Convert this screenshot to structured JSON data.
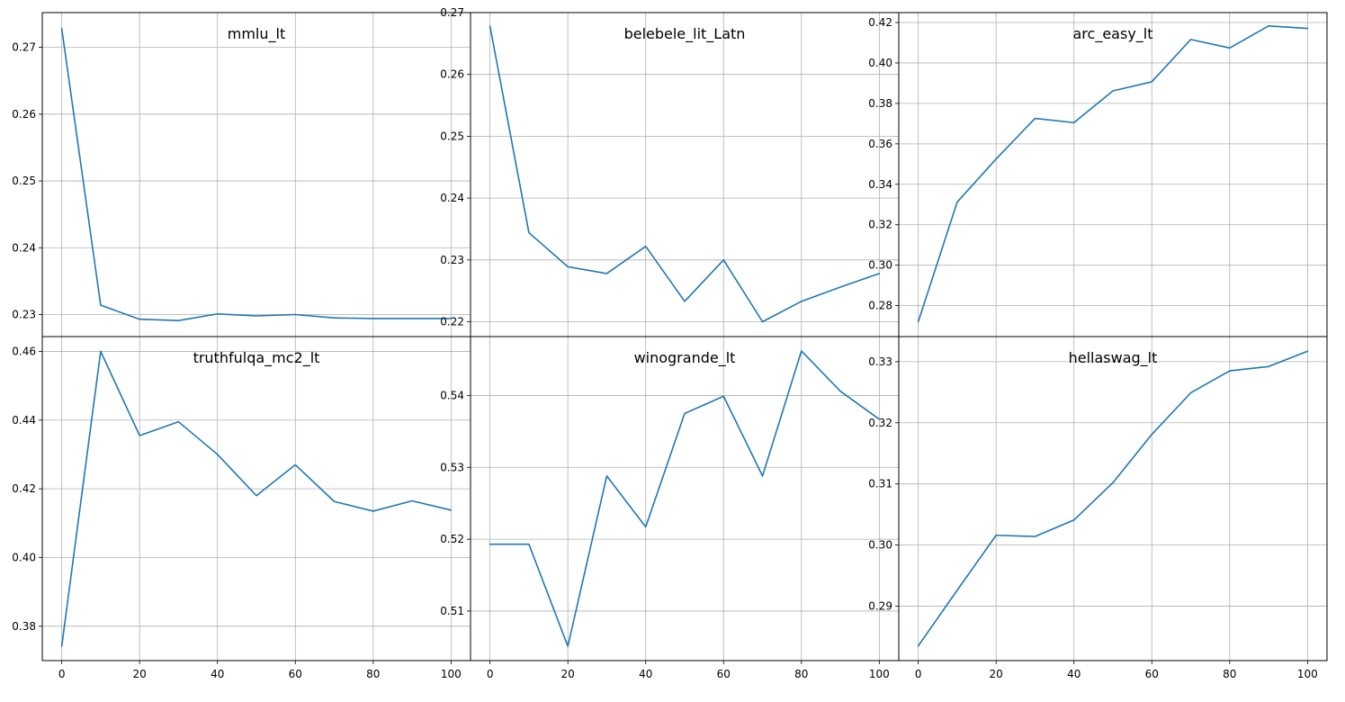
{
  "chart_data": [
    {
      "type": "line",
      "title": "mmlu_lt",
      "x": [
        0,
        10,
        20,
        30,
        40,
        50,
        60,
        70,
        80,
        90,
        100
      ],
      "values": [
        0.2728,
        0.2314,
        0.2293,
        0.2291,
        0.2301,
        0.2298,
        0.23,
        0.2295,
        0.2294,
        0.2294,
        0.2294
      ],
      "xlim": [
        -5,
        105
      ],
      "ylim": [
        0.2267,
        0.2752
      ],
      "xticks": [
        0,
        20,
        40,
        60,
        80,
        100
      ],
      "xtick_labels": [
        "0",
        "20",
        "40",
        "60",
        "80",
        "100"
      ],
      "yticks": [
        0.23,
        0.24,
        0.25,
        0.26,
        0.27
      ],
      "ytick_labels": [
        "0.23",
        "0.24",
        "0.25",
        "0.26",
        "0.27"
      ],
      "grid": true
    },
    {
      "type": "line",
      "title": "belebele_lit_Latn",
      "x": [
        0,
        10,
        20,
        30,
        40,
        50,
        60,
        70,
        80,
        90,
        100
      ],
      "values": [
        0.2678,
        0.2344,
        0.2289,
        0.2278,
        0.2322,
        0.2233,
        0.23,
        0.22,
        0.2233,
        0.2256,
        0.2278
      ],
      "xlim": [
        -5,
        105
      ],
      "ylim": [
        0.2176,
        0.27
      ],
      "xticks": [
        0,
        20,
        40,
        60,
        80,
        100
      ],
      "xtick_labels": [
        "0",
        "20",
        "40",
        "60",
        "80",
        "100"
      ],
      "yticks": [
        0.22,
        0.23,
        0.24,
        0.25,
        0.26,
        0.27
      ],
      "ytick_labels": [
        "0.22",
        "0.23",
        "0.24",
        "0.25",
        "0.26",
        "0.27"
      ],
      "grid": true
    },
    {
      "type": "line",
      "title": "arc_easy_lt",
      "x": [
        0,
        10,
        20,
        30,
        40,
        50,
        60,
        70,
        80,
        90,
        100
      ],
      "values": [
        0.272,
        0.3312,
        0.3525,
        0.3726,
        0.3705,
        0.3862,
        0.3907,
        0.4116,
        0.4074,
        0.4183,
        0.4171
      ],
      "xlim": [
        -5,
        105
      ],
      "ylim": [
        0.2647,
        0.4249
      ],
      "xticks": [
        0,
        20,
        40,
        60,
        80,
        100
      ],
      "xtick_labels": [
        "0",
        "20",
        "40",
        "60",
        "80",
        "100"
      ],
      "yticks": [
        0.28,
        0.3,
        0.32,
        0.34,
        0.36,
        0.38,
        0.4,
        0.42
      ],
      "ytick_labels": [
        "0.28",
        "0.30",
        "0.32",
        "0.34",
        "0.36",
        "0.38",
        "0.40",
        "0.42"
      ],
      "grid": true
    },
    {
      "type": "line",
      "title": "truthfulqa_mc2_lt",
      "x": [
        0,
        10,
        20,
        30,
        40,
        50,
        60,
        70,
        80,
        90,
        100
      ],
      "values": [
        0.3742,
        0.46,
        0.4355,
        0.4395,
        0.43,
        0.418,
        0.427,
        0.4163,
        0.4135,
        0.4165,
        0.4138
      ],
      "xlim": [
        -5,
        105
      ],
      "ylim": [
        0.37,
        0.4643
      ],
      "xticks": [
        0,
        20,
        40,
        60,
        80,
        100
      ],
      "xtick_labels": [
        "0",
        "20",
        "40",
        "60",
        "80",
        "100"
      ],
      "yticks": [
        0.38,
        0.4,
        0.42,
        0.44,
        0.46
      ],
      "ytick_labels": [
        "0.38",
        "0.40",
        "0.42",
        "0.44",
        "0.46"
      ],
      "grid": true
    },
    {
      "type": "line",
      "title": "winogrande_lt",
      "x": [
        0,
        10,
        20,
        30,
        40,
        50,
        60,
        70,
        80,
        90,
        100
      ],
      "values": [
        0.5193,
        0.5193,
        0.5051,
        0.5288,
        0.5217,
        0.5375,
        0.5399,
        0.5288,
        0.5462,
        0.5406,
        0.5367
      ],
      "xlim": [
        -5,
        105
      ],
      "ylim": [
        0.5031,
        0.5482
      ],
      "xticks": [
        0,
        20,
        40,
        60,
        80,
        100
      ],
      "xtick_labels": [
        "0",
        "20",
        "40",
        "60",
        "80",
        "100"
      ],
      "yticks": [
        0.51,
        0.52,
        0.53,
        0.54
      ],
      "ytick_labels": [
        "0.51",
        "0.52",
        "0.53",
        "0.54"
      ],
      "grid": true
    },
    {
      "type": "line",
      "title": "hellaswag_lt",
      "x": [
        0,
        10,
        20,
        30,
        40,
        50,
        60,
        70,
        80,
        90,
        100
      ],
      "values": [
        0.2835,
        0.2926,
        0.3016,
        0.3014,
        0.3041,
        0.3102,
        0.3181,
        0.3249,
        0.3285,
        0.3292,
        0.3317
      ],
      "xlim": [
        -5,
        105
      ],
      "ylim": [
        0.2811,
        0.3341
      ],
      "xticks": [
        0,
        20,
        40,
        60,
        80,
        100
      ],
      "xtick_labels": [
        "0",
        "20",
        "40",
        "60",
        "80",
        "100"
      ],
      "yticks": [
        0.29,
        0.3,
        0.31,
        0.32,
        0.33
      ],
      "ytick_labels": [
        "0.29",
        "0.30",
        "0.31",
        "0.32",
        "0.33"
      ],
      "grid": true
    }
  ]
}
